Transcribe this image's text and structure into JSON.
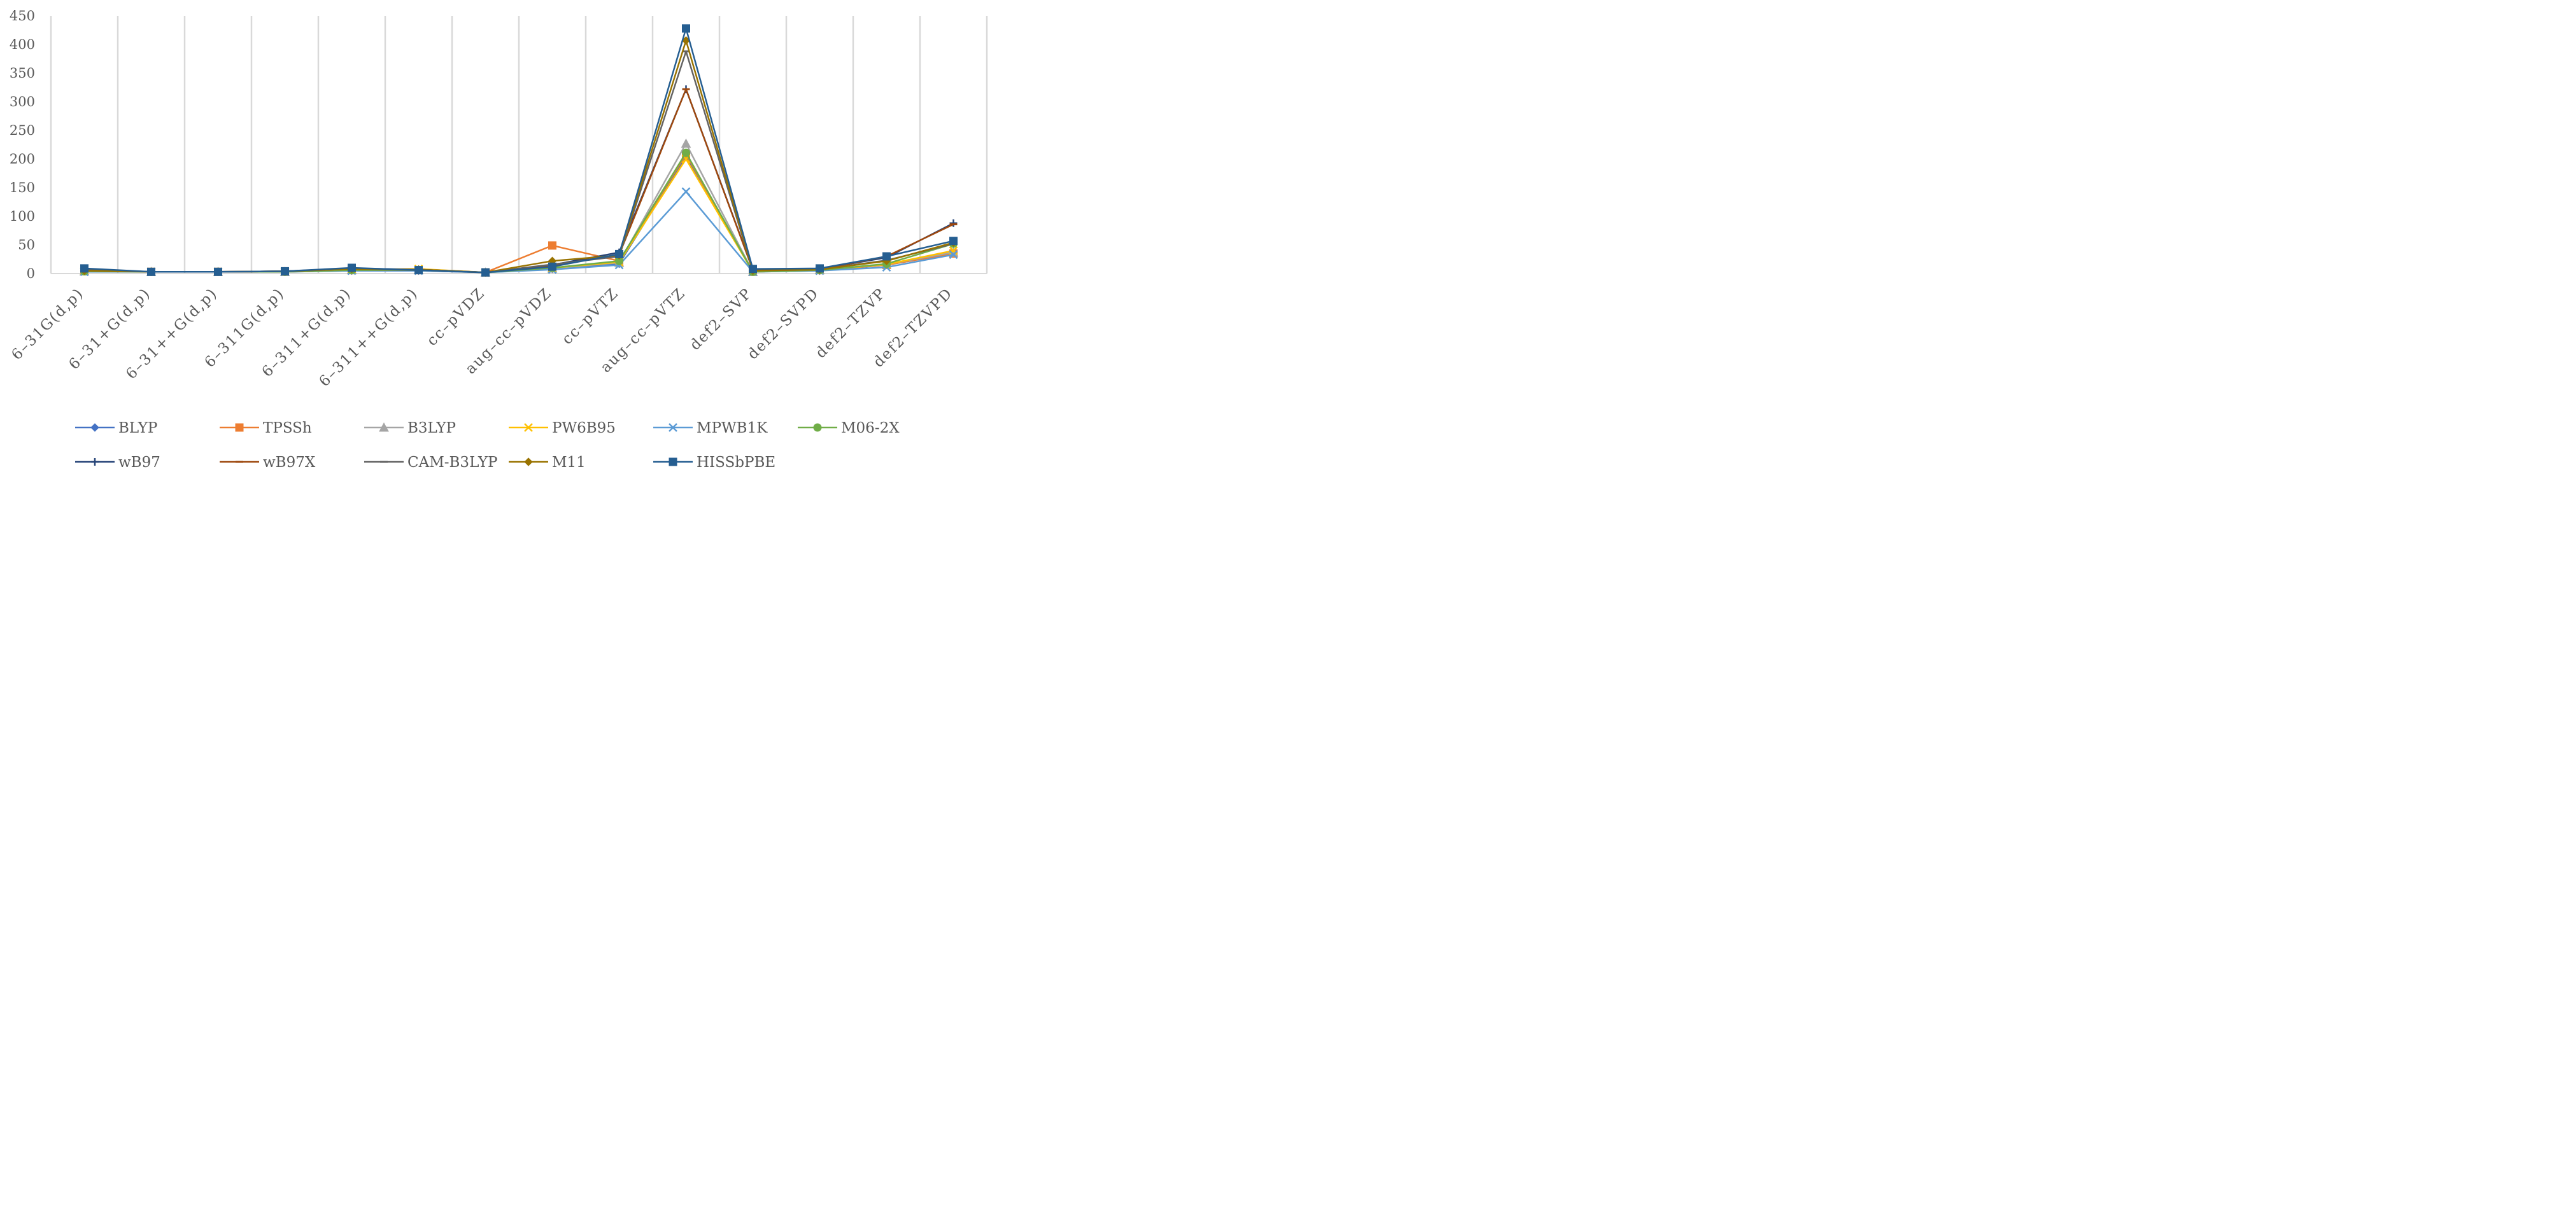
{
  "chart_data": {
    "type": "line",
    "title": "",
    "xlabel": "",
    "ylabel": "",
    "ylim": [
      0,
      450
    ],
    "yticks": [
      0,
      50,
      100,
      150,
      200,
      250,
      300,
      350,
      400,
      450
    ],
    "grid": "vertical",
    "legend_position": "bottom",
    "categories": [
      "6-31G(d,p)",
      "6-31+G(d,p)",
      "6-31++G(d,p)",
      "6-311G(d,p)",
      "6-311+G(d,p)",
      "6-311++G(d,p)",
      "cc-pVDZ",
      "aug-cc-pVDZ",
      "cc-pVTZ",
      "aug-cc-pVTZ",
      "def2-SVP",
      "def2-SVPD",
      "def2-TZVP",
      "def2-TZVPD"
    ],
    "category_labels": [
      "6–31G(d,p)",
      "6–31+G(d,p)",
      "6–31++G(d,p)",
      "6–311G(d,p)",
      "6–311+G(d,p)",
      "6–311++G(d,p)",
      "cc–pVDZ",
      "aug–cc–pVDZ",
      "cc–pVTZ",
      "aug–cc–pVTZ",
      "def2–SVP",
      "def2–SVPD",
      "def2–TZVP",
      "def2–TZVPD"
    ],
    "series": [
      {
        "name": "BLYP",
        "color": "#4472C4",
        "marker": "diamond",
        "values": [
          4,
          3,
          3,
          3,
          5,
          5,
          2,
          8,
          17,
          205,
          3,
          5,
          15,
          35
        ]
      },
      {
        "name": "TPSSh",
        "color": "#ED7D31",
        "marker": "square",
        "values": [
          4,
          3,
          3,
          3,
          6,
          6,
          2,
          49,
          22,
          208,
          3,
          6,
          15,
          35
        ]
      },
      {
        "name": "B3LYP",
        "color": "#A5A5A5",
        "marker": "triangle",
        "values": [
          4,
          3,
          3,
          3,
          6,
          6,
          2,
          9,
          19,
          227,
          3,
          6,
          16,
          37
        ]
      },
      {
        "name": "PW6B95",
        "color": "#FFC000",
        "marker": "x",
        "values": [
          4,
          3,
          3,
          3,
          7,
          8,
          2,
          10,
          20,
          200,
          3,
          6,
          16,
          40
        ]
      },
      {
        "name": "MPWB1K",
        "color": "#5B9BD5",
        "marker": "x",
        "values": [
          3,
          3,
          3,
          3,
          5,
          5,
          2,
          7,
          15,
          143,
          3,
          5,
          11,
          33
        ]
      },
      {
        "name": "M06-2X",
        "color": "#70AD47",
        "marker": "circle",
        "values": [
          4,
          3,
          3,
          3,
          6,
          6,
          2,
          10,
          22,
          211,
          3,
          6,
          17,
          52
        ]
      },
      {
        "name": "wB97",
        "color": "#264478",
        "marker": "plus",
        "values": [
          7,
          3,
          3,
          4,
          9,
          7,
          2,
          15,
          37,
          322,
          7,
          8,
          28,
          88
        ]
      },
      {
        "name": "wB97X",
        "color": "#9E480E",
        "marker": "dash",
        "values": [
          7,
          3,
          3,
          4,
          8,
          7,
          2,
          14,
          33,
          322,
          6,
          7,
          30,
          86
        ]
      },
      {
        "name": "CAM-B3LYP",
        "color": "#636363",
        "marker": "dash",
        "values": [
          6,
          3,
          3,
          4,
          8,
          6,
          2,
          16,
          30,
          388,
          5,
          7,
          23,
          52
        ]
      },
      {
        "name": "M11",
        "color": "#997300",
        "marker": "diamond",
        "values": [
          5,
          3,
          3,
          4,
          8,
          7,
          2,
          22,
          32,
          407,
          5,
          7,
          22,
          54
        ]
      },
      {
        "name": "HISSbPBE",
        "color": "#255E91",
        "marker": "square",
        "values": [
          9,
          3,
          3,
          4,
          10,
          6,
          2,
          12,
          34,
          428,
          8,
          9,
          30,
          57
        ]
      }
    ]
  }
}
